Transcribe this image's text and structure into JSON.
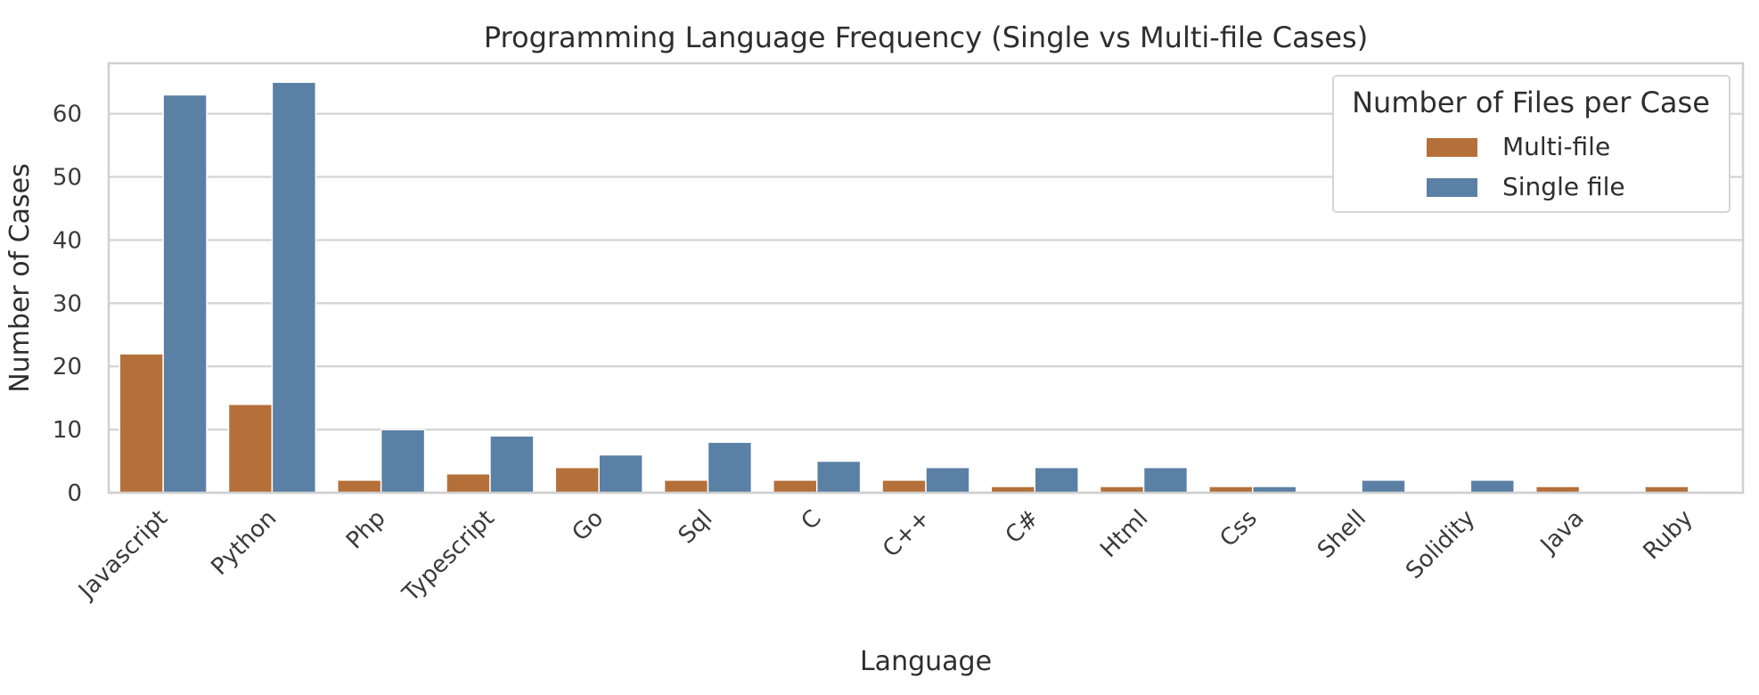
{
  "chart_data": {
    "type": "bar",
    "title": "Programming Language Frequency (Single vs Multi-file Cases)",
    "xlabel": "Language",
    "ylabel": "Number of Cases",
    "ylim": [
      0,
      68
    ],
    "yticks": [
      0,
      10,
      20,
      30,
      40,
      50,
      60
    ],
    "grid": true,
    "legend": {
      "title": "Number of Files per Case",
      "placement": "top-right"
    },
    "categories": [
      "Javascript",
      "Python",
      "Php",
      "Typescript",
      "Go",
      "Sql",
      "C",
      "C++",
      "C#",
      "Html",
      "Css",
      "Shell",
      "Solidity",
      "Java",
      "Ruby"
    ],
    "series": [
      {
        "name": "Multi-file",
        "color": "#b5703a",
        "values": [
          22,
          14,
          2,
          3,
          4,
          2,
          2,
          2,
          1,
          1,
          1,
          0,
          0,
          1,
          1
        ]
      },
      {
        "name": "Single file",
        "color": "#5b80a5",
        "values": [
          63,
          65,
          10,
          9,
          6,
          8,
          5,
          4,
          4,
          4,
          1,
          2,
          2,
          0,
          0
        ]
      }
    ]
  }
}
